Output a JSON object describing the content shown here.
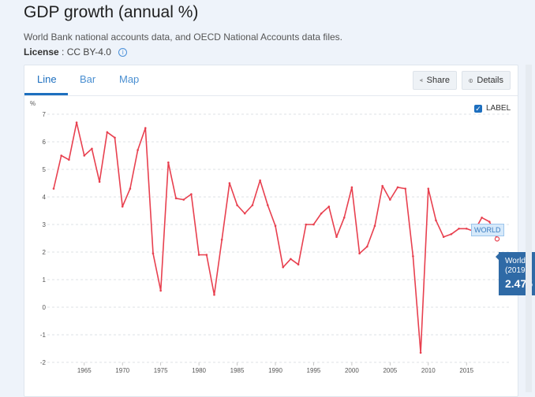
{
  "header": {
    "title": "GDP growth (annual %)",
    "subtitle": "World Bank national accounts data, and OECD National Accounts data files.",
    "license_label": "License",
    "license_value": ": CC BY-4.0"
  },
  "tabs": [
    {
      "label": "Line",
      "active": true
    },
    {
      "label": "Bar",
      "active": false
    },
    {
      "label": "Map",
      "active": false
    }
  ],
  "actions": {
    "share_label": "Share",
    "details_label": "Details"
  },
  "label_toggle": {
    "label": "LABEL",
    "checked": true
  },
  "series_label": "WORLD",
  "tooltip": {
    "line1": "World",
    "line2": "(2019)",
    "value": "2.475"
  },
  "colors": {
    "line": "#e8404f",
    "accent": "#1d6fbf",
    "tooltip_bg": "#2f6aa6"
  },
  "chart_data": {
    "type": "line",
    "ylabel": "%",
    "ylim": [
      -2,
      7
    ],
    "yticks": [
      "7",
      "6",
      "5",
      "4",
      "3",
      "2",
      "1",
      "0",
      "-1",
      "-2"
    ],
    "xticks": [
      "1965",
      "1970",
      "1975",
      "1980",
      "1985",
      "1990",
      "1995",
      "2000",
      "2005",
      "2010",
      "2015"
    ],
    "grid": true,
    "series": [
      {
        "name": "WORLD",
        "x": [
          1961,
          1962,
          1963,
          1964,
          1965,
          1966,
          1967,
          1968,
          1969,
          1970,
          1971,
          1972,
          1973,
          1974,
          1975,
          1976,
          1977,
          1978,
          1979,
          1980,
          1981,
          1982,
          1983,
          1984,
          1985,
          1986,
          1987,
          1988,
          1989,
          1990,
          1991,
          1992,
          1993,
          1994,
          1995,
          1996,
          1997,
          1998,
          1999,
          2000,
          2001,
          2002,
          2003,
          2004,
          2005,
          2006,
          2007,
          2008,
          2009,
          2010,
          2011,
          2012,
          2013,
          2014,
          2015,
          2016,
          2017,
          2018,
          2019
        ],
        "y": [
          4.3,
          5.5,
          5.35,
          6.7,
          5.5,
          5.75,
          4.55,
          6.35,
          6.15,
          3.65,
          4.3,
          5.7,
          6.5,
          1.95,
          0.6,
          5.25,
          3.95,
          3.9,
          4.1,
          1.9,
          1.9,
          0.45,
          2.45,
          4.5,
          3.7,
          3.4,
          3.7,
          4.6,
          3.7,
          2.95,
          1.45,
          1.75,
          1.55,
          3.0,
          3.0,
          3.4,
          3.65,
          2.55,
          3.25,
          4.35,
          1.95,
          2.2,
          2.95,
          4.4,
          3.9,
          4.35,
          4.3,
          1.85,
          -1.65,
          4.3,
          3.15,
          2.55,
          2.65,
          2.85,
          2.85,
          2.75,
          3.25,
          3.1,
          2.475
        ]
      }
    ]
  }
}
